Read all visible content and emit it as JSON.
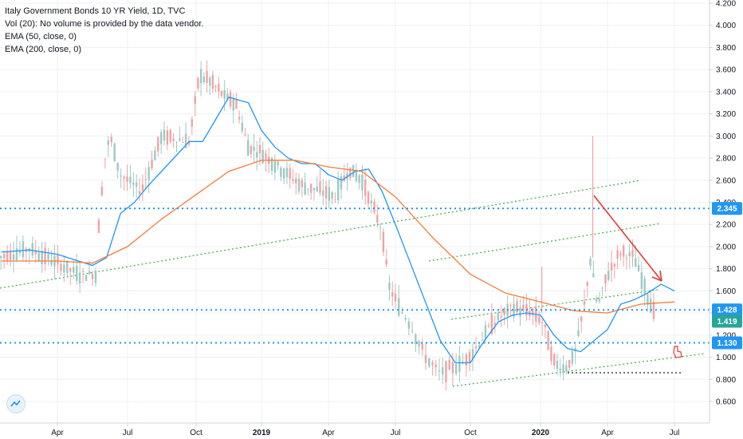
{
  "legend": {
    "title": "Italy Government Bonds 10 YR Yield, 1D, TVC",
    "vol": "Vol (20): No volume is provided by the data vendor.",
    "ema50": "EMA (50, close, 0)",
    "ema200": "EMA (200, close, 0)"
  },
  "colors": {
    "up_candle": "#9ec9c5",
    "down_candle": "#f0a3a5",
    "ema50": "#2196f3",
    "ema200": "#f57c37",
    "level_line": "#2196f3",
    "channel": "#4caf50",
    "trend": "#e53935",
    "price_tag": "#2196f3"
  },
  "chart_data": {
    "type": "line",
    "title": "Italy Government Bonds 10 YR Yield, 1D, TVC",
    "x_ticks": [
      "Apr",
      "Jul",
      "Oct",
      "2019",
      "Apr",
      "Jul",
      "Oct",
      "2020",
      "Apr",
      "Jul"
    ],
    "y_ticks": [
      "4.200",
      "4.000",
      "3.800",
      "3.600",
      "3.400",
      "3.200",
      "3.000",
      "2.800",
      "2.600",
      "2.400",
      "2.200",
      "2.000",
      "1.800",
      "1.600",
      "1.400",
      "1.200",
      "1.000",
      "0.800",
      "0.600"
    ],
    "ylim": [
      0.5,
      4.2
    ],
    "x_positions": [
      0,
      1,
      2,
      3,
      4,
      5,
      6,
      7,
      8,
      9
    ],
    "series": [
      {
        "name": "EMA (50, close, 0)",
        "x": [
          -0.8,
          -0.4,
          0.0,
          0.3,
          0.5,
          0.7,
          0.9,
          1.1,
          1.3,
          1.6,
          1.9,
          2.1,
          2.3,
          2.5,
          2.8,
          3.0,
          3.2,
          3.4,
          3.6,
          3.8,
          4.0,
          4.2,
          4.4,
          4.6,
          4.8,
          5.0,
          5.2,
          5.4,
          5.6,
          5.8,
          6.0,
          6.2,
          6.4,
          6.6,
          6.8,
          7.0,
          7.2,
          7.4,
          7.6,
          7.8,
          8.0,
          8.2,
          8.4,
          8.6,
          8.8,
          9.0
        ],
        "values": [
          1.95,
          1.97,
          1.93,
          1.87,
          1.83,
          1.9,
          2.3,
          2.4,
          2.55,
          2.75,
          2.95,
          2.95,
          3.15,
          3.35,
          3.3,
          3.05,
          2.9,
          2.8,
          2.75,
          2.75,
          2.65,
          2.6,
          2.68,
          2.7,
          2.5,
          2.2,
          1.85,
          1.5,
          1.15,
          0.95,
          0.95,
          1.15,
          1.32,
          1.38,
          1.4,
          1.38,
          1.2,
          1.08,
          1.05,
          1.15,
          1.25,
          1.48,
          1.52,
          1.58,
          1.66,
          1.6
        ]
      },
      {
        "name": "EMA (200, close, 0)",
        "x": [
          -0.8,
          0.0,
          0.5,
          1.0,
          1.5,
          2.0,
          2.5,
          3.0,
          3.5,
          4.0,
          4.5,
          5.0,
          5.5,
          6.0,
          6.5,
          7.0,
          7.5,
          8.0,
          8.5,
          9.0
        ],
        "values": [
          1.87,
          1.87,
          1.85,
          2.0,
          2.25,
          2.47,
          2.68,
          2.78,
          2.78,
          2.72,
          2.68,
          2.45,
          2.08,
          1.75,
          1.58,
          1.5,
          1.42,
          1.4,
          1.48,
          1.5
        ]
      }
    ],
    "levels": [
      2.345,
      1.428,
      1.13
    ],
    "price_labels": [
      "2.345",
      "1.428",
      "1.419",
      "1.130"
    ]
  }
}
